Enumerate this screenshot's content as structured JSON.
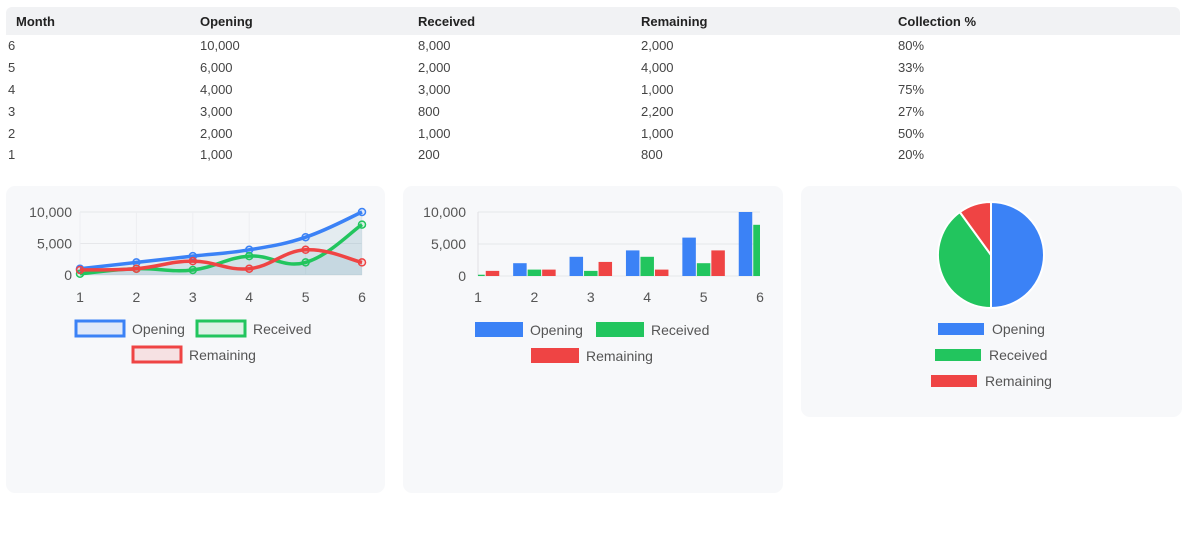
{
  "table": {
    "headers": [
      "Month",
      "Opening",
      "Received",
      "Remaining",
      "Collection %"
    ],
    "rows": [
      [
        "6",
        "10,000",
        "8,000",
        "2,000",
        "80%"
      ],
      [
        "5",
        "6,000",
        "2,000",
        "4,000",
        "33%"
      ],
      [
        "4",
        "4,000",
        "3,000",
        "1,000",
        "75%"
      ],
      [
        "3",
        "3,000",
        "800",
        "2,200",
        "27%"
      ],
      [
        "2",
        "2,000",
        "1,000",
        "1,000",
        "50%"
      ],
      [
        "1",
        "1,000",
        "200",
        "800",
        "20%"
      ]
    ]
  },
  "colors": {
    "opening": "#3b82f6",
    "received": "#22c55e",
    "remaining": "#ef4444"
  },
  "chart_data": [
    {
      "type": "line",
      "x": [
        1,
        2,
        3,
        4,
        5,
        6
      ],
      "series": [
        {
          "name": "Opening",
          "values": [
            1000,
            2000,
            3000,
            4000,
            6000,
            10000
          ]
        },
        {
          "name": "Received",
          "values": [
            200,
            1000,
            800,
            3000,
            2000,
            8000
          ]
        },
        {
          "name": "Remaining",
          "values": [
            800,
            1000,
            2200,
            1000,
            4000,
            2000
          ]
        }
      ],
      "yticks": [
        "0",
        "5,000",
        "10,000"
      ],
      "xticks": [
        "1",
        "2",
        "3",
        "4",
        "5",
        "6"
      ],
      "ylim": [
        0,
        10000
      ],
      "fill": true,
      "legend": "bottom"
    },
    {
      "type": "bar",
      "categories": [
        "1",
        "2",
        "3",
        "4",
        "5",
        "6"
      ],
      "series": [
        {
          "name": "Opening",
          "values": [
            1000,
            2000,
            3000,
            4000,
            6000,
            10000
          ]
        },
        {
          "name": "Received",
          "values": [
            200,
            1000,
            800,
            3000,
            2000,
            8000
          ]
        },
        {
          "name": "Remaining",
          "values": [
            800,
            1000,
            2200,
            1000,
            4000,
            2000
          ]
        }
      ],
      "yticks": [
        "0",
        "5,000",
        "10,000"
      ],
      "ylim": [
        0,
        10000
      ],
      "legend": "bottom"
    },
    {
      "type": "pie",
      "labels": [
        "Opening",
        "Received",
        "Remaining"
      ],
      "values": [
        10000,
        8000,
        2000
      ],
      "legend": "bottom"
    }
  ]
}
